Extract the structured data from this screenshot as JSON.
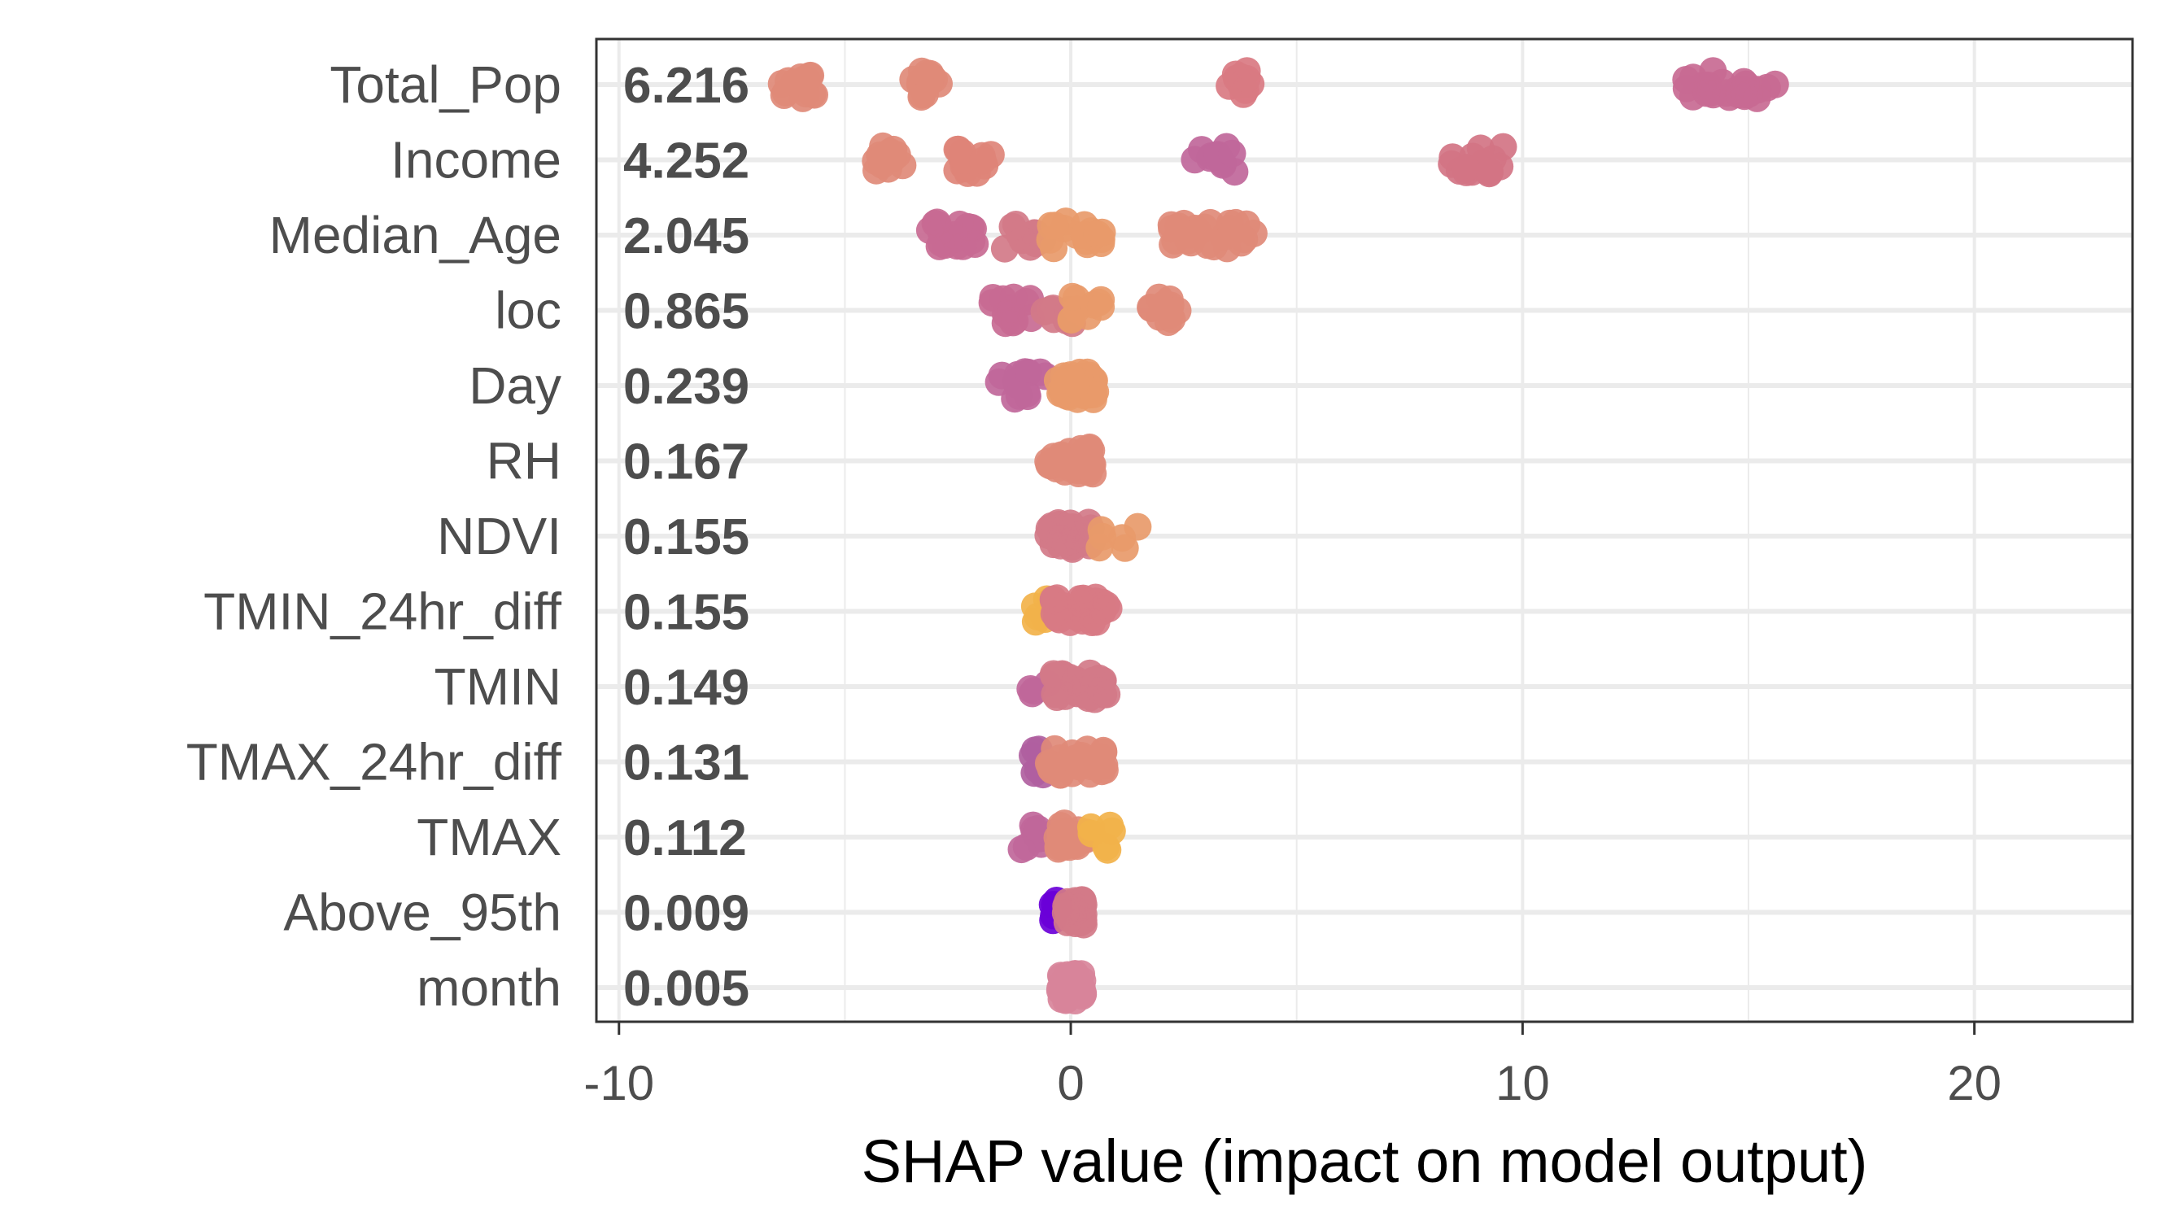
{
  "chart_data": {
    "type": "scatter",
    "subtype": "shap-beeswarm",
    "title": "",
    "xlabel": "SHAP value (impact on model output)",
    "ylabel": "",
    "xlim": [
      -10.5,
      23.5
    ],
    "xticks": [
      -10,
      0,
      10,
      20
    ],
    "xtick_labels": [
      "-10",
      "0",
      "10",
      "20"
    ],
    "grid": true,
    "legend": "none",
    "colors": {
      "high": "#6a00d8",
      "mid": "#c0679a",
      "low": "#e89a6a",
      "lowest": "#f2b24a",
      "grid": "#ebebeb",
      "frame": "#333333"
    },
    "features": [
      {
        "name": "Total_Pop",
        "mean_abs": "6.216",
        "clusters": [
          {
            "x": [
              -6.5,
              -5.6
            ],
            "n": 16,
            "color": "#e08a78"
          },
          {
            "x": [
              -3.6,
              -2.9
            ],
            "n": 14,
            "color": "#e08a78"
          },
          {
            "x": [
              3.5,
              4.1
            ],
            "n": 10,
            "color": "#d97a82"
          },
          {
            "x": [
              13.6,
              15.6
            ],
            "n": 26,
            "color": "#c86a92"
          }
        ]
      },
      {
        "name": "Income",
        "mean_abs": "4.252",
        "clusters": [
          {
            "x": [
              -4.4,
              -3.7
            ],
            "n": 14,
            "color": "#e08a78"
          },
          {
            "x": [
              -2.6,
              -1.7
            ],
            "n": 14,
            "color": "#de8478"
          },
          {
            "x": [
              2.6,
              3.7
            ],
            "n": 12,
            "color": "#c0679a"
          },
          {
            "x": [
              8.4,
              9.6
            ],
            "n": 16,
            "color": "#d27484"
          }
        ]
      },
      {
        "name": "Median_Age",
        "mean_abs": "2.045",
        "clusters": [
          {
            "x": [
              -3.2,
              -1.9
            ],
            "n": 18,
            "color": "#c86a92"
          },
          {
            "x": [
              -1.5,
              -0.6
            ],
            "n": 12,
            "color": "#d27a88"
          },
          {
            "x": [
              -0.5,
              0.7
            ],
            "n": 18,
            "color": "#e89a6a"
          },
          {
            "x": [
              2.2,
              4.2
            ],
            "n": 26,
            "color": "#e08a78"
          }
        ]
      },
      {
        "name": "loc",
        "mean_abs": "0.865",
        "clusters": [
          {
            "x": [
              -1.8,
              -0.8
            ],
            "n": 14,
            "color": "#c86a92"
          },
          {
            "x": [
              -0.7,
              0.1
            ],
            "n": 10,
            "color": "#d27a88"
          },
          {
            "x": [
              -0.1,
              0.7
            ],
            "n": 10,
            "color": "#e89a6a"
          },
          {
            "x": [
              1.6,
              2.4
            ],
            "n": 12,
            "color": "#e08a78"
          }
        ]
      },
      {
        "name": "Day",
        "mean_abs": "0.239",
        "clusters": [
          {
            "x": [
              -1.6,
              -0.5
            ],
            "n": 14,
            "color": "#c0679a"
          },
          {
            "x": [
              -0.3,
              0.6
            ],
            "n": 40,
            "color": "#e89a6a"
          }
        ]
      },
      {
        "name": "RH",
        "mean_abs": "0.167",
        "clusters": [
          {
            "x": [
              -0.6,
              0.5
            ],
            "n": 36,
            "color": "#e08a78"
          }
        ]
      },
      {
        "name": "NDVI",
        "mean_abs": "0.155",
        "clusters": [
          {
            "x": [
              -0.5,
              0.5
            ],
            "n": 34,
            "color": "#d27a88"
          },
          {
            "x": [
              0.6,
              1.6
            ],
            "n": 6,
            "color": "#e89a6a"
          }
        ]
      },
      {
        "name": "TMIN_24hr_diff",
        "mean_abs": "0.155",
        "clusters": [
          {
            "x": [
              -0.8,
              -0.4
            ],
            "n": 6,
            "color": "#f2b24a"
          },
          {
            "x": [
              -0.4,
              0.9
            ],
            "n": 34,
            "color": "#d87a84"
          }
        ]
      },
      {
        "name": "TMIN",
        "mean_abs": "0.149",
        "clusters": [
          {
            "x": [
              -1.0,
              -0.5
            ],
            "n": 4,
            "color": "#c0679a"
          },
          {
            "x": [
              -0.4,
              0.8
            ],
            "n": 34,
            "color": "#d27a88"
          }
        ]
      },
      {
        "name": "TMAX_24hr_diff",
        "mean_abs": "0.131",
        "clusters": [
          {
            "x": [
              -1.1,
              -0.6
            ],
            "n": 6,
            "color": "#b060a0"
          },
          {
            "x": [
              -0.5,
              0.8
            ],
            "n": 34,
            "color": "#e08a78"
          }
        ]
      },
      {
        "name": "TMAX",
        "mean_abs": "0.112",
        "clusters": [
          {
            "x": [
              -1.3,
              -0.3
            ],
            "n": 10,
            "color": "#c0679a"
          },
          {
            "x": [
              -0.3,
              0.4
            ],
            "n": 26,
            "color": "#e08a78"
          },
          {
            "x": [
              0.4,
              1.1
            ],
            "n": 6,
            "color": "#f2b24a"
          }
        ]
      },
      {
        "name": "Above_95th",
        "mean_abs": "0.009",
        "clusters": [
          {
            "x": [
              -0.45,
              -0.25
            ],
            "n": 6,
            "color": "#6a00d8"
          },
          {
            "x": [
              -0.15,
              0.3
            ],
            "n": 30,
            "color": "#d27a88"
          }
        ]
      },
      {
        "name": "month",
        "mean_abs": "0.005",
        "clusters": [
          {
            "x": [
              -0.25,
              0.3
            ],
            "n": 34,
            "color": "#d8849a"
          }
        ]
      }
    ]
  }
}
